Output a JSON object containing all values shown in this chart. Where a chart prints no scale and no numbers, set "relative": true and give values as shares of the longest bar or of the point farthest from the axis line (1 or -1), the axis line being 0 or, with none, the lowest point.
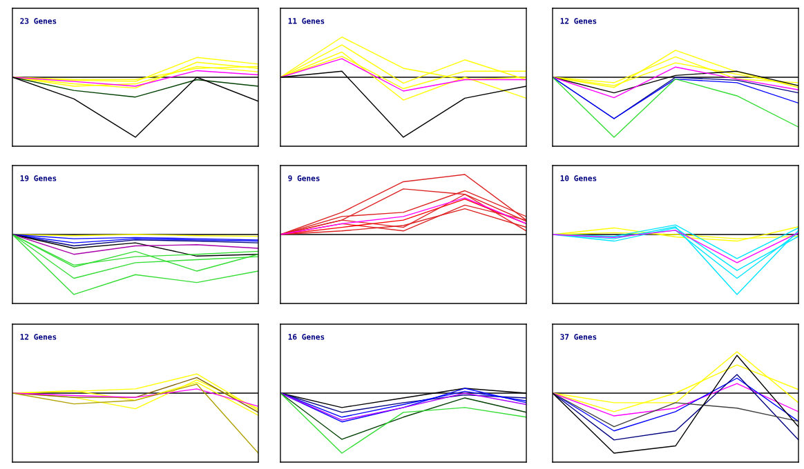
{
  "chart_data": [
    {
      "type": "line",
      "relative": true,
      "title": "23 Genes",
      "categories": [
        null,
        null,
        null,
        null,
        null
      ],
      "series": [
        {
          "color": "#ffff00",
          "values": [
            0,
            -0.11,
            -0.18,
            0.25,
            0.15
          ]
        },
        {
          "color": "#ffff00",
          "values": [
            0,
            -0.05,
            -0.07,
            0.33,
            0.22
          ]
        },
        {
          "color": "#ffff00",
          "values": [
            0,
            -0.15,
            -0.11,
            0.18,
            0.09
          ]
        },
        {
          "color": "#ffff00",
          "values": [
            0,
            -0.04,
            -0.04,
            0.15,
            0.18
          ]
        },
        {
          "color": "#ff00ff",
          "values": [
            0,
            -0.07,
            -0.15,
            0.11,
            0.04
          ]
        },
        {
          "color": "#004000",
          "values": [
            0,
            -0.22,
            -0.33,
            -0.04,
            -0.15
          ]
        },
        {
          "color": "#000000",
          "values": [
            0,
            -0.36,
            -1,
            0,
            -0.4
          ]
        }
      ]
    },
    {
      "type": "line",
      "relative": true,
      "title": "11 Genes",
      "categories": [
        null,
        null,
        null,
        null,
        null
      ],
      "series": [
        {
          "color": "#ffff00",
          "values": [
            0,
            0.67,
            0.15,
            -0.04,
            0
          ]
        },
        {
          "color": "#ffff00",
          "values": [
            0,
            0.54,
            -0.1,
            0.29,
            -0.04
          ]
        },
        {
          "color": "#ffff00",
          "values": [
            0,
            0.42,
            -0.38,
            0,
            -0.35
          ]
        },
        {
          "color": "#ffff00",
          "values": [
            0,
            0.35,
            -0.19,
            0.1,
            0.1
          ]
        },
        {
          "color": "#ff00ff",
          "values": [
            0,
            0.31,
            -0.23,
            -0.04,
            -0.04
          ]
        },
        {
          "color": "#000000",
          "values": [
            0,
            0.1,
            -1,
            -0.35,
            -0.15
          ]
        }
      ]
    },
    {
      "type": "line",
      "relative": true,
      "title": "12 Genes",
      "categories": [
        null,
        null,
        null,
        null,
        null
      ],
      "series": [
        {
          "color": "#ffff00",
          "values": [
            0,
            -0.17,
            0.45,
            0.09,
            -0.17
          ]
        },
        {
          "color": "#ffff00",
          "values": [
            0,
            -0.09,
            0.34,
            -0.03,
            -0.09
          ]
        },
        {
          "color": "#ffff00",
          "values": [
            0,
            -0.14,
            0.24,
            0.05,
            -0.14
          ]
        },
        {
          "color": "#000000",
          "values": [
            0,
            -0.26,
            0.03,
            0.1,
            -0.14
          ]
        },
        {
          "color": "#ff00ff",
          "values": [
            0,
            -0.34,
            0.17,
            -0.03,
            -0.21
          ]
        },
        {
          "color": "#000080",
          "values": [
            0,
            -0.69,
            0,
            -0.05,
            -0.26
          ]
        },
        {
          "color": "#0000ff",
          "values": [
            0,
            -0.69,
            -0.03,
            -0.09,
            -0.43
          ]
        },
        {
          "color": "#33dd33",
          "values": [
            0,
            -1,
            -0.03,
            -0.31,
            -0.83
          ]
        }
      ]
    },
    {
      "type": "line",
      "relative": true,
      "title": "19 Genes",
      "categories": [
        null,
        null,
        null,
        null,
        null
      ],
      "series": [
        {
          "color": "#ffff00",
          "values": [
            0,
            -0.02,
            0,
            -0.02,
            -0.03
          ]
        },
        {
          "color": "#0000ff",
          "values": [
            0,
            -0.14,
            -0.07,
            -0.09,
            -0.11
          ]
        },
        {
          "color": "#0000ff",
          "values": [
            0,
            -0.07,
            -0.05,
            -0.07,
            -0.09
          ]
        },
        {
          "color": "#000080",
          "values": [
            0,
            -0.19,
            -0.09,
            -0.11,
            -0.14
          ]
        },
        {
          "color": "#000000",
          "values": [
            0,
            -0.23,
            -0.14,
            -0.36,
            -0.33
          ]
        },
        {
          "color": "#aa00aa",
          "values": [
            0,
            -0.33,
            -0.19,
            -0.17,
            -0.23
          ]
        },
        {
          "color": "#33dd33",
          "values": [
            0,
            -0.51,
            -0.37,
            -0.33,
            -0.28
          ]
        },
        {
          "color": "#33dd33",
          "values": [
            0,
            -0.54,
            -0.28,
            -0.61,
            -0.33
          ]
        },
        {
          "color": "#33dd33",
          "values": [
            0,
            -0.73,
            -0.47,
            -0.42,
            -0.37
          ]
        },
        {
          "color": "#33dd33",
          "values": [
            0,
            -1,
            -0.67,
            -0.8,
            -0.61
          ]
        }
      ]
    },
    {
      "type": "line",
      "relative": true,
      "title": "9 Genes",
      "categories": [
        null,
        null,
        null,
        null,
        null
      ],
      "series": [
        {
          "color": "#dd2222",
          "values": [
            0,
            0.37,
            0.88,
            1,
            0.24
          ]
        },
        {
          "color": "#dd2222",
          "values": [
            0,
            0.24,
            0.76,
            0.67,
            0.06
          ]
        },
        {
          "color": "#dd2222",
          "values": [
            0,
            0.3,
            0.37,
            0.73,
            0.3
          ]
        },
        {
          "color": "#dd2222",
          "values": [
            0,
            0.18,
            0.06,
            0.49,
            0.24
          ]
        },
        {
          "color": "#ff0000",
          "values": [
            0,
            0.12,
            0.24,
            0.59,
            0.18
          ]
        },
        {
          "color": "#dd2222",
          "values": [
            0,
            0.06,
            0.15,
            0.43,
            0.12
          ]
        },
        {
          "color": "#dd2222",
          "values": [
            0,
            0.24,
            0.12,
            0.67,
            0.22
          ]
        },
        {
          "color": "#ff00ff",
          "values": [
            0,
            0.18,
            0.3,
            0.61,
            0.18
          ]
        }
      ]
    },
    {
      "type": "line",
      "relative": true,
      "title": "10 Genes",
      "categories": [
        null,
        null,
        null,
        null,
        null
      ],
      "series": [
        {
          "color": "#ffff00",
          "values": [
            0,
            0.11,
            -0.04,
            -0.11,
            0.13
          ]
        },
        {
          "color": "#ffff00",
          "values": [
            0,
            0.03,
            0,
            -0.07,
            -0.03
          ]
        },
        {
          "color": "#00e5ff",
          "values": [
            0,
            -0.07,
            0.13,
            -1,
            0.07
          ]
        },
        {
          "color": "#00e5ff",
          "values": [
            0,
            -0.11,
            0.11,
            -0.6,
            -0.03
          ]
        },
        {
          "color": "#00e5ff",
          "values": [
            0,
            -0.04,
            0.07,
            -0.73,
            0.03
          ]
        },
        {
          "color": "#00e5ff",
          "values": [
            0,
            -0.03,
            0.16,
            -0.4,
            0.11
          ]
        },
        {
          "color": "#ff00ff",
          "values": [
            0,
            -0.05,
            0.07,
            -0.47,
            0.03
          ]
        }
      ]
    },
    {
      "type": "line",
      "relative": true,
      "title": "12 Genes",
      "categories": [
        null,
        null,
        null,
        null,
        null
      ],
      "series": [
        {
          "color": "#ffff00",
          "values": [
            0,
            0.03,
            0.07,
            0.32,
            -0.29
          ]
        },
        {
          "color": "#ffff00",
          "values": [
            0,
            0.04,
            -0.12,
            0.18,
            -0.37
          ]
        },
        {
          "color": "#ffff00",
          "values": [
            0,
            -0.07,
            -0.26,
            0.22,
            -0.26
          ]
        },
        {
          "color": "#806000",
          "values": [
            0,
            -0.07,
            -0.07,
            0.26,
            -0.32
          ]
        },
        {
          "color": "#ff00ff",
          "values": [
            0,
            -0.04,
            -0.07,
            0.07,
            -0.22
          ]
        },
        {
          "color": "#b0a000",
          "values": [
            0,
            -0.18,
            -0.12,
            0.15,
            -1
          ]
        }
      ]
    },
    {
      "type": "line",
      "relative": true,
      "title": "16 Genes",
      "categories": [
        null,
        null,
        null,
        null,
        null
      ],
      "series": [
        {
          "color": "#000000",
          "values": [
            0,
            -0.24,
            -0.08,
            0.08,
            0
          ]
        },
        {
          "color": "#000080",
          "values": [
            0,
            -0.32,
            -0.16,
            -0.03,
            -0.08
          ]
        },
        {
          "color": "#0000ff",
          "values": [
            0,
            -0.4,
            -0.19,
            0.03,
            -0.13
          ]
        },
        {
          "color": "#0000ff",
          "values": [
            0,
            -0.48,
            -0.24,
            0.08,
            -0.16
          ]
        },
        {
          "color": "#aa00ff",
          "values": [
            0,
            -0.45,
            -0.24,
            0,
            -0.19
          ]
        },
        {
          "color": "#004000",
          "values": [
            0,
            -0.77,
            -0.4,
            -0.08,
            -0.32
          ]
        },
        {
          "color": "#33dd33",
          "values": [
            0,
            -1,
            -0.32,
            -0.24,
            -0.4
          ]
        }
      ]
    },
    {
      "type": "line",
      "relative": true,
      "title": "37 Genes",
      "categories": [
        null,
        null,
        null,
        null,
        null
      ],
      "series": [
        {
          "color": "#ffff00",
          "values": [
            0,
            -0.16,
            -0.16,
            0.69,
            -0.16
          ]
        },
        {
          "color": "#ffff00",
          "values": [
            0,
            -0.31,
            0,
            0.47,
            0.06
          ]
        },
        {
          "color": "#ff00ff",
          "values": [
            0,
            -0.38,
            -0.25,
            0.16,
            -0.31
          ]
        },
        {
          "color": "#0000ff",
          "values": [
            0,
            -0.63,
            -0.31,
            0.25,
            -0.47
          ]
        },
        {
          "color": "#000080",
          "values": [
            0,
            -0.78,
            -0.63,
            0.31,
            -0.78
          ]
        },
        {
          "color": "#404040",
          "values": [
            0,
            -0.56,
            -0.16,
            -0.25,
            -0.47
          ]
        },
        {
          "color": "#000000",
          "values": [
            0,
            -1,
            -0.88,
            0.63,
            -0.56
          ]
        }
      ]
    }
  ]
}
